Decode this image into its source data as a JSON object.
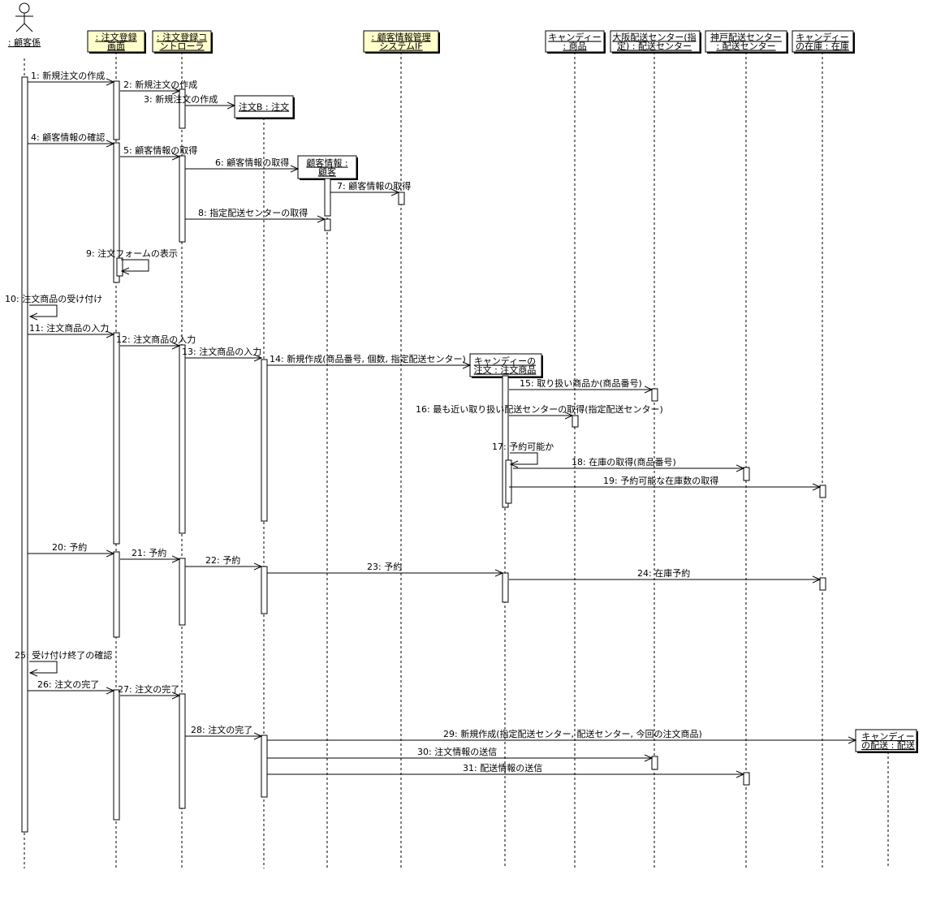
{
  "colors": {
    "boundary": "#ffffcc",
    "entity": "#ffffff",
    "line": "#000000"
  },
  "actor": {
    "name": ": 顧客係",
    "icon": "stick-figure-icon"
  },
  "participants": [
    {
      "id": "screen",
      "lines": [
        ": 注文登録",
        "画面"
      ],
      "kind": "boundary"
    },
    {
      "id": "ctrl",
      "lines": [
        ": 注文登録コ",
        "ントローラ"
      ],
      "kind": "boundary"
    },
    {
      "id": "custif",
      "lines": [
        ": 顧客情報管理",
        "システムIF"
      ],
      "kind": "boundary"
    },
    {
      "id": "candyprod",
      "lines": [
        "キャンディー",
        ": 商品"
      ],
      "kind": "entity"
    },
    {
      "id": "osaka",
      "lines": [
        "大阪配送センター(指",
        "定) : 配送センター"
      ],
      "kind": "entity"
    },
    {
      "id": "kobe",
      "lines": [
        "神戸配送センター",
        ": 配送センター"
      ],
      "kind": "entity"
    },
    {
      "id": "stock",
      "lines": [
        "キャンディー",
        "の在庫 : 在庫"
      ],
      "kind": "entity"
    }
  ],
  "created_objects": [
    {
      "id": "order",
      "lines": [
        "注文B : 注文"
      ]
    },
    {
      "id": "custinfo",
      "lines": [
        "顧客情報 :",
        "顧客"
      ]
    },
    {
      "id": "orderitem",
      "lines": [
        "キャンディーの",
        "注文 : 注文商品"
      ]
    },
    {
      "id": "delivery",
      "lines": [
        "キャンディー",
        "の配送 : 配送"
      ]
    }
  ],
  "messages": [
    {
      "label": "1: 新規注文の作成",
      "from": "actor",
      "to": "screen"
    },
    {
      "label": "2: 新規注文の作成",
      "from": "screen",
      "to": "ctrl"
    },
    {
      "label": "3: 新規注文の作成",
      "from": "ctrl",
      "to": "order"
    },
    {
      "label": "4: 顧客情報の確認",
      "from": "actor",
      "to": "screen"
    },
    {
      "label": "5: 顧客情報の取得",
      "from": "screen",
      "to": "ctrl"
    },
    {
      "label": "6: 顧客情報の取得",
      "from": "ctrl",
      "to": "custinfo"
    },
    {
      "label": "7: 顧客情報の取得",
      "from": "custinfo",
      "to": "custif"
    },
    {
      "label": "8: 指定配送センターの取得",
      "from": "ctrl",
      "to": "custinfo"
    },
    {
      "label": "9: 注文フォームの表示",
      "from": "screen",
      "to": "screen"
    },
    {
      "label": "10: 注文商品の受け付け",
      "from": "actor",
      "to": "actor"
    },
    {
      "label": "11: 注文商品の入力",
      "from": "actor",
      "to": "screen"
    },
    {
      "label": "12: 注文商品の入力",
      "from": "screen",
      "to": "ctrl"
    },
    {
      "label": "13: 注文商品の入力",
      "from": "ctrl",
      "to": "order"
    },
    {
      "label": "14: 新規作成(商品番号, 個数, 指定配送センター)",
      "from": "order",
      "to": "orderitem"
    },
    {
      "label": "15: 取り扱い商品か(商品番号)",
      "from": "orderitem",
      "to": "osaka"
    },
    {
      "label": "16: 最も近い取り扱い配送センターの取得(指定配送センター)",
      "from": "orderitem",
      "to": "candyprod"
    },
    {
      "label": "17: 予約可能か",
      "from": "orderitem",
      "to": "orderitem"
    },
    {
      "label": "18: 在庫の取得(商品番号)",
      "from": "orderitem",
      "to": "kobe"
    },
    {
      "label": "19: 予約可能な在庫数の取得",
      "from": "orderitem",
      "to": "stock"
    },
    {
      "label": "20: 予約",
      "from": "actor",
      "to": "screen"
    },
    {
      "label": "21: 予約",
      "from": "screen",
      "to": "ctrl"
    },
    {
      "label": "22: 予約",
      "from": "ctrl",
      "to": "order"
    },
    {
      "label": "23: 予約",
      "from": "order",
      "to": "orderitem"
    },
    {
      "label": "24: 在庫予約",
      "from": "orderitem",
      "to": "stock"
    },
    {
      "label": "25: 受け付け終了の確認",
      "from": "actor",
      "to": "actor"
    },
    {
      "label": "26: 注文の完了",
      "from": "actor",
      "to": "screen"
    },
    {
      "label": "27: 注文の完了",
      "from": "screen",
      "to": "ctrl"
    },
    {
      "label": "28: 注文の完了",
      "from": "ctrl",
      "to": "order"
    },
    {
      "label": "29: 新規作成(指定配送センター, 配送センター, 今回の注文商品)",
      "from": "order",
      "to": "delivery"
    },
    {
      "label": "30: 注文情報の送信",
      "from": "order",
      "to": "osaka"
    },
    {
      "label": "31: 配送情報の送信",
      "from": "order",
      "to": "kobe"
    }
  ]
}
